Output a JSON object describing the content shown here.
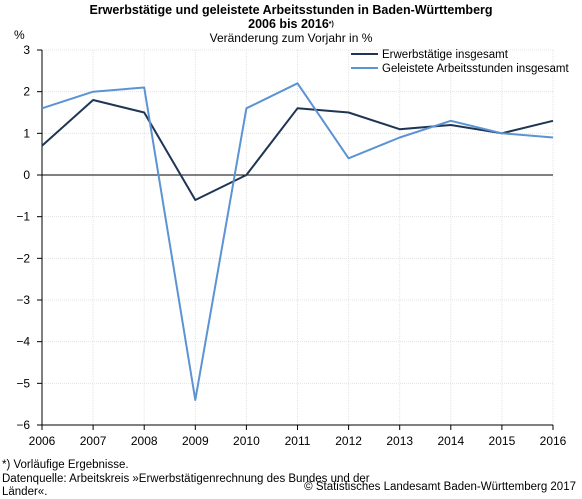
{
  "title_line1": "Erwerbstätige und geleistete Arbeitsstunden in Baden-Württemberg",
  "title_line2": "2006 bis 2016",
  "title_sup": "*)",
  "subtitle": "Veränderung zum Vorjahr in %",
  "footnote": "*) Vorläufige Ergebnisse.",
  "source_line1": "Datenquelle: Arbeitskreis »Erwerbstätigenrechnung des Bundes und der",
  "source_line2": "Länder«.",
  "copyright": "© Statistisches Landesamt Baden-Württemberg 2017",
  "chart_data": {
    "type": "line",
    "ylabel": "%",
    "xlabel": "",
    "x": [
      "2006",
      "2007",
      "2008",
      "2009",
      "2010",
      "2011",
      "2012",
      "2013",
      "2014",
      "2015",
      "2016"
    ],
    "ylim": [
      -6,
      3
    ],
    "yticks": [
      3,
      2,
      1,
      0,
      -1,
      -2,
      -3,
      -4,
      -5,
      -6
    ],
    "ytick_labels": [
      "3",
      "2",
      "1",
      "0",
      "−1",
      "−2",
      "−3",
      "−4",
      "−5",
      "−6"
    ],
    "grid": true,
    "legend_position": "top-right",
    "series": [
      {
        "name": "Erwerbstätige insgesamt",
        "color": "#1f3554",
        "values": [
          0.7,
          1.8,
          1.5,
          -0.6,
          0.0,
          1.6,
          1.5,
          1.1,
          1.2,
          1.0,
          1.3
        ]
      },
      {
        "name": "Geleistete Arbeitsstunden insgesamt",
        "color": "#5b93d3",
        "values": [
          1.6,
          2.0,
          2.1,
          -5.4,
          1.6,
          2.2,
          0.4,
          0.9,
          1.3,
          1.0,
          0.9
        ]
      }
    ]
  }
}
